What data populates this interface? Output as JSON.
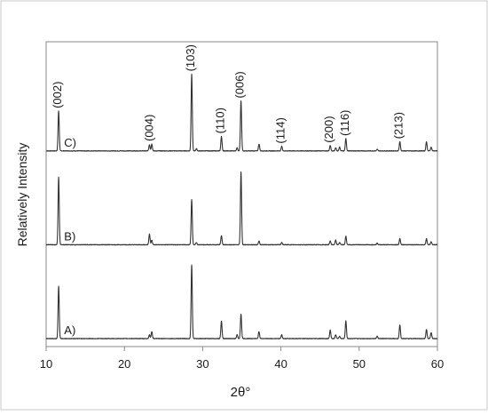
{
  "chart_data": {
    "type": "line",
    "xlabel": "2θ°",
    "ylabel": "Relatively Intensity",
    "xlim": [
      10,
      60
    ],
    "x_ticks": [
      10,
      20,
      30,
      40,
      50,
      60
    ],
    "y_ticks_shown": false,
    "grid": false,
    "colors": {
      "line": "#333333",
      "frame": "#8a8a8a",
      "text": "#1a1a1a"
    },
    "series": [
      {
        "name": "C)",
        "offset": 0.66,
        "scale": 0.27,
        "peaks": [
          [
            11.6,
            0.52
          ],
          [
            23.2,
            0.08
          ],
          [
            23.5,
            0.09
          ],
          [
            28.6,
            1.0
          ],
          [
            29.2,
            0.03
          ],
          [
            32.4,
            0.19
          ],
          [
            34.4,
            0.04
          ],
          [
            34.9,
            0.65
          ],
          [
            37.2,
            0.09
          ],
          [
            40.1,
            0.06
          ],
          [
            46.3,
            0.07
          ],
          [
            47.0,
            0.04
          ],
          [
            47.5,
            0.05
          ],
          [
            48.3,
            0.16
          ],
          [
            52.3,
            0.02
          ],
          [
            55.2,
            0.12
          ],
          [
            58.6,
            0.12
          ],
          [
            59.2,
            0.05
          ]
        ]
      },
      {
        "name": "B)",
        "offset": 0.33,
        "scale": 0.27,
        "peaks": [
          [
            11.6,
            0.88
          ],
          [
            23.2,
            0.14
          ],
          [
            23.5,
            0.06
          ],
          [
            28.6,
            0.59
          ],
          [
            29.2,
            0.03
          ],
          [
            32.4,
            0.12
          ],
          [
            34.9,
            0.95
          ],
          [
            37.2,
            0.05
          ],
          [
            40.1,
            0.03
          ],
          [
            46.3,
            0.05
          ],
          [
            47.0,
            0.06
          ],
          [
            47.5,
            0.03
          ],
          [
            48.3,
            0.11
          ],
          [
            52.3,
            0.02
          ],
          [
            55.2,
            0.08
          ],
          [
            58.6,
            0.08
          ],
          [
            59.2,
            0.04
          ]
        ]
      },
      {
        "name": "A)",
        "offset": 0.0,
        "scale": 0.27,
        "peaks": [
          [
            11.6,
            0.68
          ],
          [
            23.2,
            0.05
          ],
          [
            23.5,
            0.09
          ],
          [
            28.6,
            0.96
          ],
          [
            32.4,
            0.23
          ],
          [
            34.4,
            0.05
          ],
          [
            34.9,
            0.32
          ],
          [
            37.2,
            0.09
          ],
          [
            40.1,
            0.05
          ],
          [
            46.3,
            0.11
          ],
          [
            47.0,
            0.05
          ],
          [
            47.5,
            0.03
          ],
          [
            48.3,
            0.23
          ],
          [
            52.3,
            0.03
          ],
          [
            55.2,
            0.18
          ],
          [
            58.6,
            0.12
          ],
          [
            59.2,
            0.08
          ]
        ]
      }
    ],
    "peak_labels": [
      {
        "text": "(002)",
        "x": 11.6
      },
      {
        "text": "(004)",
        "x": 23.3
      },
      {
        "text": "(103)",
        "x": 28.6
      },
      {
        "text": "(110)",
        "x": 32.4
      },
      {
        "text": "(006)",
        "x": 34.9
      },
      {
        "text": "(114)",
        "x": 40.1
      },
      {
        "text": "(200)",
        "x": 46.3
      },
      {
        "text": "(116)",
        "x": 48.3
      },
      {
        "text": "(213)",
        "x": 55.2
      }
    ]
  }
}
